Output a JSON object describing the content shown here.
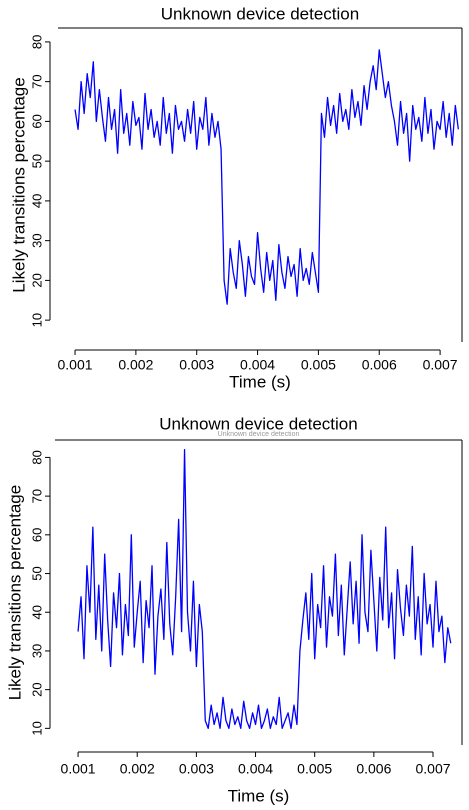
{
  "chart_data": [
    {
      "type": "line",
      "title": "Unknown device detection",
      "x_label": "Time (s)",
      "y_label": "Likely transitions percentage",
      "x": [
        0.001,
        0.00105,
        0.0011,
        0.00115,
        0.0012,
        0.00125,
        0.0013,
        0.00135,
        0.0014,
        0.00145,
        0.0015,
        0.00155,
        0.0016,
        0.00165,
        0.0017,
        0.00175,
        0.0018,
        0.00185,
        0.0019,
        0.00195,
        0.002,
        0.00205,
        0.0021,
        0.00215,
        0.0022,
        0.00225,
        0.0023,
        0.00235,
        0.0024,
        0.00245,
        0.0025,
        0.00255,
        0.0026,
        0.00265,
        0.0027,
        0.00275,
        0.0028,
        0.00285,
        0.0029,
        0.00295,
        0.003,
        0.00305,
        0.0031,
        0.00315,
        0.0032,
        0.00325,
        0.0033,
        0.00335,
        0.0034,
        0.00345,
        0.0035,
        0.00355,
        0.0036,
        0.00365,
        0.0037,
        0.00375,
        0.0038,
        0.00385,
        0.0039,
        0.00395,
        0.004,
        0.00405,
        0.0041,
        0.00415,
        0.0042,
        0.00425,
        0.0043,
        0.00435,
        0.0044,
        0.00445,
        0.0045,
        0.00455,
        0.0046,
        0.00465,
        0.0047,
        0.00475,
        0.0048,
        0.00485,
        0.0049,
        0.00495,
        0.005,
        0.00505,
        0.0051,
        0.00515,
        0.0052,
        0.00525,
        0.0053,
        0.00535,
        0.0054,
        0.00545,
        0.0055,
        0.00555,
        0.0056,
        0.00565,
        0.0057,
        0.00575,
        0.0058,
        0.00585,
        0.0059,
        0.00595,
        0.006,
        0.00605,
        0.0061,
        0.00615,
        0.0062,
        0.00625,
        0.0063,
        0.00635,
        0.0064,
        0.00645,
        0.0065,
        0.00655,
        0.0066,
        0.00665,
        0.0067,
        0.00675,
        0.0068,
        0.00685,
        0.0069,
        0.00695,
        0.007,
        0.00705,
        0.0071,
        0.00715,
        0.0072,
        0.00725,
        0.0073
      ],
      "series": [
        {
          "color": "#0000ff",
          "values": [
            63,
            58,
            70,
            62,
            72,
            66,
            75,
            60,
            68,
            61,
            55,
            66,
            58,
            63,
            52,
            68,
            57,
            62,
            54,
            65,
            59,
            61,
            53,
            67,
            58,
            63,
            56,
            60,
            54,
            66,
            57,
            62,
            52,
            64,
            58,
            60,
            55,
            63,
            57,
            65,
            53,
            61,
            58,
            66,
            54,
            62,
            56,
            60,
            53,
            20,
            14,
            28,
            22,
            18,
            30,
            24,
            16,
            26,
            21,
            19,
            32,
            23,
            17,
            27,
            20,
            25,
            15,
            29,
            22,
            18,
            26,
            21,
            24,
            16,
            28,
            20,
            23,
            19,
            27,
            22,
            17,
            62,
            56,
            66,
            59,
            64,
            57,
            67,
            60,
            63,
            58,
            68,
            61,
            65,
            59,
            69,
            63,
            70,
            74,
            68,
            78,
            72,
            66,
            70,
            64,
            60,
            54,
            65,
            57,
            62,
            50,
            64,
            58,
            61,
            55,
            66,
            57,
            63,
            53,
            60,
            58,
            65,
            56,
            62,
            54,
            64,
            58
          ]
        }
      ],
      "xlim": [
        0.00072,
        0.00736
      ],
      "ylim": [
        4.5,
        83.5
      ],
      "xticks": [
        0.001,
        0.002,
        0.003,
        0.004,
        0.005,
        0.006,
        0.007
      ],
      "yticks": [
        10,
        20,
        30,
        40,
        50,
        60,
        70,
        80
      ]
    },
    {
      "type": "line",
      "title": "Unknown device detection",
      "subtitle": "Unknown device detection",
      "x_label": "Time (s)",
      "y_label": "Likely transitions percentage",
      "x": [
        0.001,
        0.00105,
        0.0011,
        0.00115,
        0.0012,
        0.00125,
        0.0013,
        0.00135,
        0.0014,
        0.00145,
        0.0015,
        0.00155,
        0.0016,
        0.00165,
        0.0017,
        0.00175,
        0.0018,
        0.00185,
        0.0019,
        0.00195,
        0.002,
        0.00205,
        0.0021,
        0.00215,
        0.0022,
        0.00225,
        0.0023,
        0.00235,
        0.0024,
        0.00245,
        0.0025,
        0.00255,
        0.0026,
        0.00265,
        0.0027,
        0.00275,
        0.0028,
        0.00285,
        0.0029,
        0.00295,
        0.003,
        0.00305,
        0.0031,
        0.00315,
        0.0032,
        0.00325,
        0.0033,
        0.00335,
        0.0034,
        0.00345,
        0.0035,
        0.00355,
        0.0036,
        0.00365,
        0.0037,
        0.00375,
        0.0038,
        0.00385,
        0.0039,
        0.00395,
        0.004,
        0.00405,
        0.0041,
        0.00415,
        0.0042,
        0.00425,
        0.0043,
        0.00435,
        0.0044,
        0.00445,
        0.0045,
        0.00455,
        0.0046,
        0.00465,
        0.0047,
        0.00475,
        0.0048,
        0.00485,
        0.0049,
        0.00495,
        0.005,
        0.00505,
        0.0051,
        0.00515,
        0.0052,
        0.00525,
        0.0053,
        0.00535,
        0.0054,
        0.00545,
        0.0055,
        0.00555,
        0.0056,
        0.00565,
        0.0057,
        0.00575,
        0.0058,
        0.00585,
        0.0059,
        0.00595,
        0.006,
        0.00605,
        0.0061,
        0.00615,
        0.0062,
        0.00625,
        0.0063,
        0.00635,
        0.0064,
        0.00645,
        0.0065,
        0.00655,
        0.0066,
        0.00665,
        0.0067,
        0.00675,
        0.0068,
        0.00685,
        0.0069,
        0.00695,
        0.007,
        0.00705,
        0.0071,
        0.00715,
        0.0072,
        0.00725,
        0.0073
      ],
      "series": [
        {
          "color": "#0000ff",
          "values": [
            35,
            44,
            28,
            52,
            40,
            62,
            33,
            47,
            30,
            55,
            38,
            26,
            45,
            36,
            50,
            29,
            42,
            34,
            60,
            31,
            40,
            48,
            27,
            43,
            36,
            52,
            24,
            39,
            46,
            33,
            58,
            37,
            29,
            44,
            64,
            35,
            82,
            40,
            30,
            48,
            26,
            42,
            35,
            12,
            10,
            16,
            11,
            14,
            10,
            18,
            12,
            10,
            15,
            11,
            13,
            10,
            17,
            12,
            10,
            14,
            11,
            16,
            10,
            12,
            15,
            10,
            13,
            11,
            18,
            10,
            12,
            14,
            10,
            16,
            11,
            30,
            38,
            45,
            33,
            50,
            28,
            42,
            36,
            52,
            31,
            44,
            39,
            55,
            34,
            47,
            29,
            41,
            53,
            37,
            48,
            32,
            60,
            40,
            35,
            56,
            43,
            30,
            49,
            38,
            62,
            36,
            45,
            28,
            51,
            41,
            34,
            47,
            39,
            57,
            33,
            44,
            29,
            50,
            37,
            42,
            31,
            48,
            35,
            39,
            27,
            36,
            32
          ]
        }
      ],
      "xlim": [
        0.00061,
        0.00749
      ],
      "ylim": [
        5.7,
        84.5
      ],
      "xticks": [
        0.001,
        0.002,
        0.003,
        0.004,
        0.005,
        0.006,
        0.007
      ],
      "yticks": [
        10,
        20,
        30,
        40,
        50,
        60,
        70,
        80
      ]
    }
  ]
}
